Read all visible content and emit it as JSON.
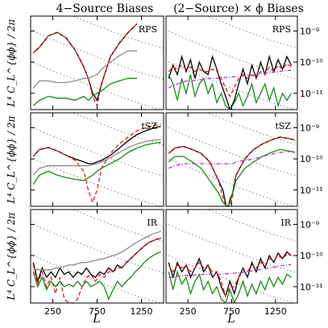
{
  "columns": {
    "left_title": "4−Source Biases",
    "right_title": "(2−Source) × ϕ Biases"
  },
  "axes": {
    "ylabel": "L⁴ C_L^{ϕϕ} / 2π",
    "xlabel": "L",
    "x_ticks": [
      "250",
      "750",
      "1250"
    ],
    "y_ticks": [
      "10⁻⁹",
      "10⁻¹⁰",
      "10⁻¹¹"
    ]
  },
  "colors": {
    "black": "#000000",
    "red_dashed": "#e41a1c",
    "green": "#1a8a1a",
    "gray": "#8c8c8c",
    "magenta_dashdot": "#b03cc8",
    "dotted_gray": "#9a9a9a"
  },
  "chart_data": [
    {
      "type": "line",
      "panel": "RPS",
      "column": "4-Source Biases",
      "xlim": [
        0,
        1500
      ],
      "yscale": "log",
      "ylim": [
        3e-12,
        3e-09
      ],
      "x": [
        30,
        100,
        200,
        300,
        400,
        500,
        600,
        650,
        700,
        750,
        800,
        900,
        1000,
        1100,
        1200
      ],
      "series": [
        {
          "color": "black",
          "values": [
            2e-10,
            3e-10,
            7e-10,
            9e-10,
            6e-10,
            2.5e-10,
            7e-11,
            3e-11,
            1e-11,
            6e-12,
            2e-11,
            1.5e-10,
            4e-10,
            9e-10,
            1.7e-09
          ]
        },
        {
          "color": "red_dashed",
          "values": [
            2e-10,
            3e-10,
            7e-10,
            9e-10,
            6e-10,
            2.5e-10,
            7e-11,
            3e-11,
            8e-12,
            4e-12,
            2e-11,
            1.5e-10,
            4e-10,
            9e-10,
            1.7e-09
          ]
        },
        {
          "color": "gray",
          "values": [
            1.5e-11,
            2.5e-11,
            2.5e-11,
            2.2e-11,
            2.2e-11,
            2.5e-11,
            3e-11,
            3e-11,
            3.5e-11,
            4e-11,
            6e-11,
            1e-10,
            1.6e-10,
            2.3e-10,
            2.3e-10
          ]
        },
        {
          "color": "green",
          "values": [
            4e-12,
            6e-12,
            8e-12,
            7e-12,
            7e-12,
            6e-12,
            8e-12,
            6e-12,
            8e-12,
            1e-11,
            1.2e-11,
            2e-11,
            2.5e-11,
            3e-11,
            3e-11
          ]
        }
      ]
    },
    {
      "type": "line",
      "panel": "RPS",
      "column": "(2-Source) x phi Biases",
      "xlim": [
        0,
        1500
      ],
      "yscale": "log",
      "ylim": [
        3e-12,
        3e-09
      ],
      "x": [
        30,
        80,
        130,
        180,
        230,
        280,
        330,
        380,
        430,
        480,
        530,
        580,
        630,
        680,
        730,
        780,
        830,
        880,
        930,
        980,
        1030,
        1080,
        1130,
        1180,
        1230,
        1280,
        1330,
        1380,
        1430
      ],
      "series": [
        {
          "color": "black",
          "values": [
            3e-11,
            8e-11,
            4e-11,
            1.5e-10,
            5e-11,
            1.2e-10,
            3e-11,
            1e-10,
            5e-11,
            4e-11,
            1.5e-10,
            6e-11,
            2e-11,
            8e-12,
            3e-12,
            6e-12,
            2e-11,
            6e-11,
            2e-11,
            8e-11,
            3e-11,
            1e-10,
            4e-11,
            1.5e-10,
            5e-11,
            1.2e-10,
            6e-11,
            1.5e-10,
            8e-11
          ]
        },
        {
          "color": "red_dashed",
          "values": [
            5e-11,
            7e-11,
            6e-11,
            8e-11,
            6e-11,
            7e-11,
            5e-11,
            6e-11,
            5e-11,
            5e-11,
            6e-11,
            5e-11,
            3e-11,
            1.5e-11,
            8e-12,
            1.5e-11,
            3e-11,
            4e-11,
            3e-11,
            4e-11,
            3e-11,
            5e-11,
            4e-11,
            7e-11,
            5e-11,
            8e-11,
            6e-11,
            9e-11,
            7e-11
          ]
        },
        {
          "color": "green",
          "values": [
            4e-11,
            2e-11,
            6e-12,
            3e-11,
            1e-11,
            4e-11,
            8e-12,
            2e-11,
            3e-11,
            1e-11,
            2e-11,
            5e-12,
            1e-11,
            4e-12,
            3e-12,
            5e-12,
            1e-11,
            4e-12,
            8e-12,
            2e-11,
            5e-12,
            1e-11,
            2e-11,
            6e-12,
            1.5e-11,
            4e-12,
            1e-11,
            6e-12,
            1e-11
          ]
        },
        {
          "color": "magenta_dashdot",
          "values": [
            1.5e-11,
            1.8e-11,
            2e-11,
            2.2e-11,
            2.5e-11,
            2.5e-11,
            2.6e-11,
            2.7e-11,
            2.8e-11,
            3e-11,
            3e-11,
            3e-11,
            3.1e-11,
            3.2e-11,
            3.3e-11,
            3.4e-11,
            3.5e-11,
            3.6e-11,
            3.7e-11,
            3.8e-11,
            4e-11,
            4.2e-11,
            4.4e-11,
            4.6e-11,
            4.8e-11,
            5e-11,
            5.2e-11,
            5.4e-11,
            5.5e-11
          ]
        }
      ]
    },
    {
      "type": "line",
      "panel": "tSZ",
      "column": "4-Source Biases",
      "xlim": [
        0,
        1500
      ],
      "yscale": "log",
      "ylim": [
        3e-12,
        3e-09
      ],
      "x": [
        30,
        100,
        200,
        300,
        400,
        500,
        600,
        650,
        700,
        750,
        800,
        900,
        1000,
        1100,
        1200,
        1300,
        1400,
        1470
      ],
      "series": [
        {
          "color": "black",
          "values": [
            1.2e-10,
            2e-10,
            2.3e-10,
            1.8e-10,
            1.3e-10,
            1e-10,
            8e-11,
            7e-11,
            7e-11,
            8e-11,
            9e-11,
            1.3e-10,
            2.2e-10,
            3.8e-10,
            6e-10,
            8e-10,
            1e-09,
            1.1e-09
          ]
        },
        {
          "color": "red_dashed",
          "values": [
            1.2e-10,
            2e-10,
            2.3e-10,
            1.8e-10,
            1.3e-10,
            9e-11,
            4e-11,
            1e-11,
            4e-12,
            1e-11,
            5e-11,
            1.5e-10,
            3e-10,
            5e-10,
            8e-10,
            1e-09,
            1.2e-09,
            1.3e-09
          ]
        },
        {
          "color": "gray",
          "values": [
            3e-11,
            5e-11,
            6e-11,
            6e-11,
            6e-11,
            6e-11,
            6e-11,
            6e-11,
            6.5e-11,
            7e-11,
            8e-11,
            1.1e-10,
            1.6e-10,
            2.3e-10,
            3e-10,
            3.6e-10,
            4e-10,
            4.2e-10
          ]
        },
        {
          "color": "green",
          "values": [
            1.5e-11,
            3e-11,
            4e-11,
            3e-11,
            2.5e-11,
            2.2e-11,
            2e-11,
            2.5e-11,
            3e-11,
            4e-11,
            5e-11,
            7e-11,
            1e-10,
            1.6e-10,
            2.2e-10,
            2.8e-10,
            3.2e-10,
            3.4e-10
          ]
        }
      ]
    },
    {
      "type": "line",
      "panel": "tSZ",
      "column": "(2-Source) x phi Biases",
      "xlim": [
        0,
        1500
      ],
      "yscale": "log",
      "ylim": [
        3e-12,
        3e-09
      ],
      "x": [
        30,
        100,
        200,
        300,
        400,
        500,
        600,
        650,
        700,
        730,
        760,
        800,
        900,
        1000,
        1100,
        1200,
        1300,
        1400,
        1470
      ],
      "series": [
        {
          "color": "black",
          "values": [
            1.5e-10,
            2.2e-10,
            2.5e-10,
            2e-10,
            1.5e-10,
            8e-11,
            2e-11,
            1e-11,
            2e-12,
            5e-12,
            8e-12,
            3e-11,
            1e-10,
            2e-10,
            3e-10,
            4e-10,
            5e-10,
            4.5e-10,
            4e-10
          ]
        },
        {
          "color": "red_dashed",
          "values": [
            1.5e-10,
            2.2e-10,
            2.5e-10,
            2e-10,
            1.5e-10,
            8e-11,
            2e-11,
            6e-12,
            2e-12,
            3e-12,
            6e-12,
            3e-11,
            1e-10,
            2e-10,
            3e-10,
            4e-10,
            5e-10,
            4.5e-10,
            4e-10
          ]
        },
        {
          "color": "green",
          "values": [
            8e-11,
            1.2e-10,
            1.2e-10,
            8e-11,
            5e-11,
            2e-11,
            8e-12,
            4e-12,
            3e-12,
            4e-12,
            8e-12,
            2e-11,
            5e-11,
            8e-11,
            1.2e-10,
            1.6e-10,
            2e-10,
            1.8e-10,
            1.6e-10
          ]
        },
        {
          "color": "magenta_dashdot",
          "values": [
            5e-11,
            6e-11,
            7e-11,
            7e-11,
            7e-11,
            7e-11,
            7e-11,
            7e-11,
            7e-11,
            7e-11,
            7e-11,
            8e-11,
            9e-11,
            1e-10,
            1.2e-10,
            1.4e-10,
            1.6e-10,
            1.7e-10,
            1.8e-10
          ]
        }
      ]
    },
    {
      "type": "line",
      "panel": "IR",
      "column": "4-Source Biases",
      "xlim": [
        0,
        1500
      ],
      "yscale": "log",
      "ylim": [
        3e-12,
        3e-09
      ],
      "x": [
        30,
        80,
        130,
        180,
        230,
        280,
        330,
        380,
        430,
        480,
        530,
        580,
        630,
        680,
        730,
        780,
        830,
        880,
        930,
        980,
        1030,
        1080,
        1130,
        1180,
        1230,
        1280,
        1330,
        1380,
        1430,
        1470
      ],
      "series": [
        {
          "color": "black",
          "values": [
            6e-11,
            1.5e-11,
            4e-11,
            2e-11,
            3e-11,
            2e-11,
            4e-11,
            2.5e-11,
            3e-11,
            2e-11,
            3e-11,
            2.5e-11,
            4e-11,
            2.5e-11,
            2e-11,
            3e-11,
            2.5e-11,
            4e-11,
            3e-11,
            5e-11,
            4e-11,
            6e-11,
            8e-11,
            1.1e-10,
            1.5e-10,
            2e-10,
            2.6e-10,
            3e-10,
            3.4e-10,
            3.6e-10
          ]
        },
        {
          "color": "red_dashed",
          "values": [
            5e-11,
            1.2e-11,
            3e-11,
            1e-11,
            2e-11,
            6e-12,
            2e-11,
            4e-12,
            3e-12,
            3e-12,
            4e-12,
            1e-11,
            2e-11,
            2.5e-11,
            1.5e-11,
            2.5e-11,
            2e-11,
            3e-11,
            3e-11,
            4e-11,
            4e-11,
            6e-11,
            8e-11,
            1.1e-10,
            1.5e-10,
            2e-10,
            2.6e-10,
            3e-10,
            3.4e-10,
            3.6e-10
          ]
        },
        {
          "color": "gray",
          "values": [
            4e-11,
            3.5e-11,
            3.5e-11,
            3.5e-11,
            3.5e-11,
            4e-11,
            4e-11,
            4.5e-11,
            5e-11,
            5e-11,
            5.5e-11,
            6e-11,
            6e-11,
            6.5e-11,
            7e-11,
            7.5e-11,
            8e-11,
            9e-11,
            1e-10,
            1.1e-10,
            1.3e-10,
            1.6e-10,
            2e-10,
            2.5e-10,
            3e-10,
            3.6e-10,
            4.2e-10,
            5e-10,
            5.5e-10,
            6e-10
          ]
        },
        {
          "color": "green",
          "values": [
            3e-11,
            1e-11,
            2e-11,
            8e-12,
            1.5e-11,
            1e-11,
            1.5e-11,
            1e-11,
            1.2e-11,
            1e-11,
            1.5e-11,
            1e-11,
            1.5e-11,
            1e-11,
            1.2e-11,
            1.5e-11,
            1e-11,
            4e-12,
            8e-12,
            1.5e-11,
            1e-11,
            1.5e-11,
            2e-11,
            3e-11,
            4e-11,
            6e-11,
            8e-11,
            1e-10,
            1.2e-10,
            1.3e-10
          ]
        }
      ]
    },
    {
      "type": "line",
      "panel": "IR",
      "column": "(2-Source) x phi Biases",
      "xlim": [
        0,
        1500
      ],
      "yscale": "log",
      "ylim": [
        3e-12,
        3e-09
      ],
      "x": [
        30,
        80,
        130,
        180,
        230,
        280,
        330,
        380,
        430,
        480,
        530,
        580,
        630,
        680,
        730,
        780,
        830,
        880,
        930,
        980,
        1030,
        1080,
        1130,
        1180,
        1230,
        1280,
        1330,
        1380,
        1430
      ],
      "series": [
        {
          "color": "black",
          "values": [
            6e-11,
            2e-11,
            6e-11,
            3e-11,
            5e-11,
            2e-11,
            4e-11,
            8e-11,
            3e-11,
            5e-11,
            2e-11,
            3e-11,
            1e-11,
            5e-12,
            1.5e-11,
            6e-12,
            2e-11,
            4e-11,
            2e-11,
            6e-11,
            3e-11,
            8e-11,
            4e-11,
            1e-10,
            6e-11,
            1.2e-10,
            8e-11,
            1.3e-10,
            1e-10
          ]
        },
        {
          "color": "red_dashed",
          "values": [
            5e-11,
            3e-11,
            5e-11,
            4e-11,
            5e-11,
            3e-11,
            4e-11,
            6e-11,
            4e-11,
            5e-11,
            3e-11,
            3e-11,
            1.5e-11,
            5e-12,
            1e-11,
            1e-11,
            2e-11,
            3e-11,
            3e-11,
            5e-11,
            4e-11,
            6e-11,
            5e-11,
            8e-11,
            7e-11,
            1e-10,
            8e-11,
            1.1e-10,
            1e-10
          ]
        },
        {
          "color": "green",
          "values": [
            3e-11,
            8e-12,
            3e-11,
            1.2e-11,
            2e-11,
            6e-12,
            1.5e-11,
            2.5e-11,
            8e-12,
            1.5e-11,
            6e-12,
            1e-11,
            4e-12,
            3e-12,
            8e-12,
            3e-12,
            6e-12,
            1.5e-11,
            5e-12,
            1.2e-11,
            6e-12,
            1.5e-11,
            8e-12,
            2e-11,
            1e-11,
            2e-11,
            1.2e-11,
            2.5e-11,
            2e-11
          ]
        },
        {
          "color": "magenta_dashdot",
          "values": [
            2e-11,
            2e-11,
            2.2e-11,
            2.2e-11,
            2.3e-11,
            2.3e-11,
            2.4e-11,
            2.4e-11,
            2.5e-11,
            2.5e-11,
            2.5e-11,
            2.5e-11,
            2.5e-11,
            2.6e-11,
            2.6e-11,
            2.7e-11,
            2.8e-11,
            2.9e-11,
            3e-11,
            3.2e-11,
            3.4e-11,
            3.6e-11,
            3.8e-11,
            4e-11,
            4.2e-11,
            4.5e-11,
            4.8e-11,
            5e-11,
            5.2e-11
          ]
        }
      ]
    }
  ],
  "theory_curves": [
    {
      "color": "dotted_gray",
      "x": [
        30,
        200,
        400,
        600,
        800,
        1000,
        1200,
        1500
      ],
      "values": [
        8e-08,
        6e-08,
        4e-08,
        2.6e-08,
        1.6e-08,
        1e-08,
        6e-09,
        3.5e-09
      ]
    },
    {
      "color": "dotted_gray",
      "x": [
        30,
        200,
        400,
        600,
        800,
        1000,
        1200,
        1500
      ],
      "values": [
        1e-08,
        6e-09,
        3.6e-09,
        2.2e-09,
        1.3e-09,
        8e-10,
        5e-10,
        2.8e-10
      ]
    },
    {
      "color": "dotted_gray",
      "x": [
        30,
        200,
        400,
        600,
        800,
        1000,
        1200,
        1500
      ],
      "values": [
        1e-09,
        6e-10,
        3.6e-10,
        2.2e-10,
        1.3e-10,
        8e-11,
        5e-11,
        2.8e-11
      ]
    },
    {
      "color": "dotted_gray",
      "x": [
        30,
        200,
        400,
        600,
        800,
        1000,
        1200,
        1500
      ],
      "values": [
        1e-10,
        6e-11,
        3.6e-11,
        2.2e-11,
        1.3e-11,
        8e-12,
        5e-12,
        2.8e-12
      ]
    }
  ],
  "panel_labels": [
    "RPS",
    "RPS",
    "tSZ",
    "tSZ",
    "IR",
    "IR"
  ]
}
